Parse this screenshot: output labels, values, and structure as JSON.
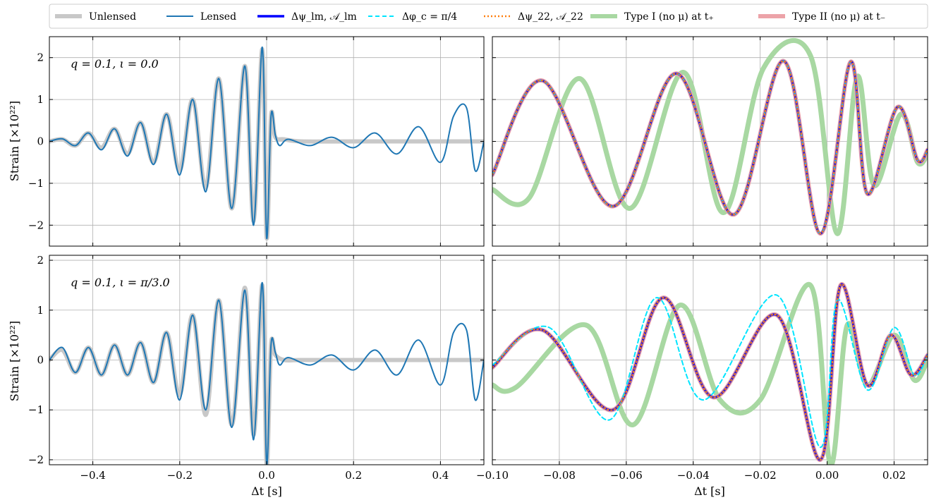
{
  "chart_data": {
    "type": "line",
    "legend": {
      "placement": "top",
      "entries": [
        {
          "key": "unlensed",
          "label": "Unlensed",
          "color": "#c8c8c8",
          "style": "thick-solid"
        },
        {
          "key": "lensed",
          "label": "Lensed",
          "color": "#1f77b4",
          "style": "solid"
        },
        {
          "key": "dpsi_lm",
          "label": "Δψ_lm, 𝒜_lm",
          "color": "#0000ff",
          "style": "bold-solid"
        },
        {
          "key": "dphi_c",
          "label": "Δφ_c = π/4",
          "color": "#00e5ff",
          "style": "dashed"
        },
        {
          "key": "dpsi_22",
          "label": "Δψ_22, 𝒜_22",
          "color": "#ff7f0e",
          "style": "dotted"
        },
        {
          "key": "type1",
          "label": "Type I (no μ) at t₊",
          "color": "#a8d8a2",
          "style": "thick-solid"
        },
        {
          "key": "type2",
          "label": "Type II (no μ) at t₋",
          "color": "#eca3a8",
          "style": "thick-solid"
        }
      ]
    },
    "xlabel": "Δt [s]",
    "ylabel": "Strain [×10²²]",
    "grid": true,
    "panels": [
      {
        "row": 0,
        "col": 0,
        "annotation": "q = 0.1, ι = 0.0",
        "xlim": [
          -0.5,
          0.5
        ],
        "ylim": [
          -2.5,
          2.5
        ],
        "xticks": [
          -0.4,
          -0.2,
          0.0,
          0.2,
          0.4
        ],
        "xticklabels": [
          "",
          "",
          "",
          "",
          ""
        ],
        "yticks": [
          -2,
          -1,
          0,
          1,
          2
        ],
        "yticklabels": [
          "−2",
          "−1",
          "0",
          "1",
          "2"
        ]
      },
      {
        "row": 0,
        "col": 1,
        "annotation": "",
        "xlim": [
          -0.1,
          0.03
        ],
        "ylim": [
          -2.5,
          2.5
        ],
        "xticks": [
          -0.1,
          -0.08,
          -0.06,
          -0.04,
          -0.02,
          0.0,
          0.02
        ],
        "xticklabels": [
          "",
          "",
          "",
          "",
          "",
          "",
          ""
        ],
        "yticks": [
          -2,
          -1,
          0,
          1,
          2
        ],
        "yticklabels": [
          "",
          "",
          "",
          "",
          ""
        ]
      },
      {
        "row": 1,
        "col": 0,
        "annotation": "q = 0.1, ι = π/3.0",
        "xlim": [
          -0.5,
          0.5
        ],
        "ylim": [
          -2.1,
          2.1
        ],
        "xticks": [
          -0.4,
          -0.2,
          0.0,
          0.2,
          0.4
        ],
        "xticklabels": [
          "−0.4",
          "−0.2",
          "0.0",
          "0.2",
          "0.4"
        ],
        "yticks": [
          -2,
          -1,
          0,
          1,
          2
        ],
        "yticklabels": [
          "−2",
          "−1",
          "0",
          "1",
          "2"
        ]
      },
      {
        "row": 1,
        "col": 1,
        "annotation": "",
        "xlim": [
          -0.1,
          0.03
        ],
        "ylim": [
          -2.1,
          2.1
        ],
        "xticks": [
          -0.1,
          -0.08,
          -0.06,
          -0.04,
          -0.02,
          0.0,
          0.02
        ],
        "xticklabels": [
          "−0.10",
          "−0.08",
          "−0.06",
          "−0.04",
          "−0.02",
          "0.00",
          "0.02"
        ],
        "yticks": [
          -2,
          -1,
          0,
          1,
          2
        ],
        "yticklabels": [
          "",
          "",
          "",
          "",
          ""
        ]
      }
    ],
    "series": {
      "top_left": {
        "unlensed": {
          "x": [
            -0.5,
            -0.47,
            -0.44,
            -0.41,
            -0.38,
            -0.35,
            -0.32,
            -0.29,
            -0.26,
            -0.23,
            -0.2,
            -0.17,
            -0.14,
            -0.11,
            -0.08,
            -0.05,
            -0.03,
            -0.01,
            0.0,
            0.01,
            0.02,
            0.04,
            0.08,
            0.2,
            0.5
          ],
          "y": [
            0.0,
            0.05,
            -0.1,
            0.2,
            -0.15,
            0.3,
            -0.3,
            0.45,
            -0.5,
            0.65,
            -0.7,
            1.0,
            -1.1,
            1.5,
            -1.6,
            1.8,
            -1.9,
            2.2,
            -2.3,
            0.6,
            0.1,
            0.05,
            0.0,
            0.0,
            0.0
          ]
        },
        "lensed": {
          "x": [
            -0.5,
            -0.47,
            -0.44,
            -0.41,
            -0.38,
            -0.35,
            -0.32,
            -0.29,
            -0.26,
            -0.23,
            -0.2,
            -0.17,
            -0.14,
            -0.11,
            -0.08,
            -0.05,
            -0.03,
            -0.01,
            0.0,
            0.01,
            0.02,
            0.03,
            0.05,
            0.1,
            0.15,
            0.2,
            0.25,
            0.3,
            0.35,
            0.4,
            0.43,
            0.46,
            0.48,
            0.5
          ],
          "y": [
            0.0,
            0.06,
            -0.1,
            0.2,
            -0.2,
            0.3,
            -0.35,
            0.45,
            -0.55,
            0.65,
            -0.8,
            1.0,
            -1.2,
            1.5,
            -1.6,
            1.8,
            -2.0,
            2.25,
            -2.3,
            0.6,
            0.15,
            -0.1,
            0.05,
            -0.1,
            0.1,
            -0.15,
            0.2,
            -0.3,
            0.35,
            -0.5,
            0.6,
            0.8,
            -0.7,
            0.0
          ]
        }
      },
      "top_right": {
        "lensed_family": {
          "x": [
            -0.1,
            -0.085,
            -0.064,
            -0.045,
            -0.028,
            -0.013,
            -0.002,
            0.007,
            0.012,
            0.021,
            0.027,
            0.03
          ],
          "y": [
            -0.8,
            1.45,
            -1.55,
            1.62,
            -1.75,
            1.92,
            -2.2,
            1.9,
            -1.25,
            0.82,
            -0.45,
            -0.2
          ]
        },
        "type1": {
          "x": [
            -0.1,
            -0.089,
            -0.074,
            -0.059,
            -0.043,
            -0.031,
            -0.019,
            -0.005,
            0.003,
            0.009,
            0.014,
            0.022,
            0.027,
            0.03
          ],
          "y": [
            -1.15,
            -1.35,
            1.5,
            -1.6,
            1.65,
            -1.7,
            1.75,
            2.05,
            -2.2,
            1.55,
            -1.05,
            0.65,
            -0.5,
            -0.3
          ]
        }
      },
      "bottom_left": {
        "unlensed": {
          "x": [
            -0.5,
            -0.47,
            -0.44,
            -0.41,
            -0.38,
            -0.35,
            -0.32,
            -0.29,
            -0.26,
            -0.23,
            -0.2,
            -0.17,
            -0.14,
            -0.11,
            -0.08,
            -0.05,
            -0.03,
            -0.01,
            0.0,
            0.01,
            0.02,
            0.04,
            0.08,
            0.2,
            0.5
          ],
          "y": [
            0.0,
            0.2,
            -0.25,
            0.25,
            -0.3,
            0.3,
            -0.3,
            0.35,
            -0.45,
            0.55,
            -0.7,
            0.9,
            -1.1,
            1.2,
            -1.3,
            1.45,
            -1.5,
            1.5,
            -2.1,
            0.3,
            0.1,
            0.0,
            0.0,
            0.0,
            0.0
          ]
        },
        "lensed": {
          "x": [
            -0.5,
            -0.47,
            -0.44,
            -0.41,
            -0.38,
            -0.35,
            -0.32,
            -0.29,
            -0.26,
            -0.23,
            -0.2,
            -0.17,
            -0.14,
            -0.11,
            -0.08,
            -0.05,
            -0.03,
            -0.01,
            0.0,
            0.01,
            0.02,
            0.03,
            0.05,
            0.1,
            0.15,
            0.2,
            0.25,
            0.3,
            0.35,
            0.4,
            0.43,
            0.46,
            0.48,
            0.5
          ],
          "y": [
            0.0,
            0.25,
            -0.25,
            0.25,
            -0.3,
            0.3,
            -0.3,
            0.35,
            -0.45,
            0.55,
            -0.8,
            0.9,
            -1.0,
            1.2,
            -1.35,
            1.4,
            -1.6,
            1.55,
            -2.1,
            0.3,
            0.15,
            -0.1,
            0.05,
            -0.1,
            0.1,
            -0.2,
            0.2,
            -0.3,
            0.4,
            -0.5,
            0.55,
            0.6,
            -0.8,
            0.0
          ]
        }
      },
      "bottom_right": {
        "lensed_family": {
          "x": [
            -0.1,
            -0.085,
            -0.064,
            -0.049,
            -0.034,
            -0.015,
            -0.002,
            0.004,
            0.012,
            0.019,
            0.025,
            0.03
          ],
          "y": [
            -0.15,
            0.6,
            -1.0,
            1.25,
            -0.75,
            0.9,
            -2.0,
            1.5,
            -0.5,
            0.5,
            -0.3,
            0.1
          ]
        },
        "dphi_c": {
          "x": [
            -0.1,
            -0.083,
            -0.065,
            -0.051,
            -0.037,
            -0.015,
            -0.002,
            0.003,
            0.012,
            0.02,
            0.026,
            0.03
          ],
          "y": [
            -0.1,
            0.65,
            -1.2,
            1.25,
            -0.8,
            1.3,
            -1.75,
            1.2,
            -0.6,
            0.65,
            -0.3,
            0.1
          ]
        },
        "type1": {
          "x": [
            -0.1,
            -0.093,
            -0.072,
            -0.058,
            -0.044,
            -0.032,
            -0.02,
            -0.005,
            0.001,
            0.006,
            0.012,
            0.02,
            0.026,
            0.03
          ],
          "y": [
            -0.5,
            -0.55,
            0.7,
            -1.3,
            1.1,
            -0.8,
            -0.8,
            1.5,
            -2.1,
            0.7,
            -0.5,
            0.5,
            -0.4,
            0.0
          ]
        }
      }
    }
  }
}
